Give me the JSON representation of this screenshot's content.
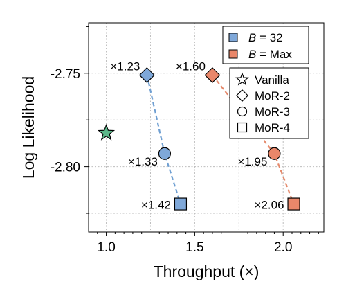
{
  "chart_data": {
    "type": "scatter",
    "xlabel": "Throughput (×)",
    "ylabel": "Log Likelihood",
    "xlim": [
      0.9,
      2.23
    ],
    "ylim": [
      -2.835,
      -2.723
    ],
    "xticks": [
      1.0,
      1.5,
      2.0
    ],
    "xtick_labels": [
      "1.0",
      "1.5",
      "2.0"
    ],
    "yticks": [
      -2.75,
      -2.8
    ],
    "ytick_labels": [
      "-2.75",
      "-2.80"
    ],
    "grid": true,
    "vanilla": {
      "name": "Vanilla",
      "x": 1.0,
      "y": -2.782,
      "color": "#5cb88a"
    },
    "series": [
      {
        "name": "B = 32",
        "name_italic": "B",
        "name_rest": " = 32",
        "color": "#7fa8d9",
        "line_color": "#6f9fd2",
        "points": [
          {
            "model": "MoR-2",
            "x": 1.23,
            "y": -2.751,
            "label": "×1.23"
          },
          {
            "model": "MoR-3",
            "x": 1.33,
            "y": -2.793,
            "label": "×1.33"
          },
          {
            "model": "MoR-4",
            "x": 1.42,
            "y": -2.82,
            "label": "×1.42"
          }
        ]
      },
      {
        "name": "B = Max",
        "name_italic": "B",
        "name_rest": " = Max",
        "color": "#e9876a",
        "line_color": "#e58a6c",
        "points": [
          {
            "model": "MoR-2",
            "x": 1.6,
            "y": -2.751,
            "label": "×1.60"
          },
          {
            "model": "MoR-3",
            "x": 1.95,
            "y": -2.793,
            "label": "×1.95"
          },
          {
            "model": "MoR-4",
            "x": 2.06,
            "y": -2.82,
            "label": "×2.06"
          }
        ]
      }
    ],
    "legend_series": {
      "placement": "top-right"
    },
    "legend_markers": {
      "placement": "upper-right",
      "items": [
        {
          "name": "Vanilla",
          "marker": "star"
        },
        {
          "name": "MoR-2",
          "marker": "diamond"
        },
        {
          "name": "MoR-3",
          "marker": "circle"
        },
        {
          "name": "MoR-4",
          "marker": "square"
        }
      ]
    }
  }
}
